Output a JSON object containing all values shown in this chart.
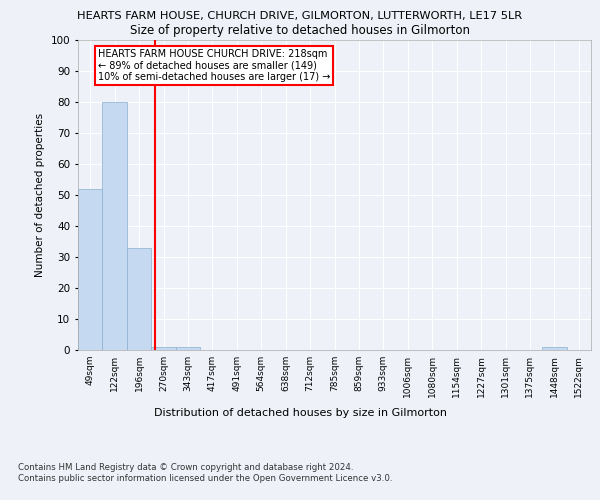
{
  "title1": "HEARTS FARM HOUSE, CHURCH DRIVE, GILMORTON, LUTTERWORTH, LE17 5LR",
  "title2": "Size of property relative to detached houses in Gilmorton",
  "xlabel": "Distribution of detached houses by size in Gilmorton",
  "ylabel": "Number of detached properties",
  "bar_labels": [
    "49sqm",
    "122sqm",
    "196sqm",
    "270sqm",
    "343sqm",
    "417sqm",
    "491sqm",
    "564sqm",
    "638sqm",
    "712sqm",
    "785sqm",
    "859sqm",
    "933sqm",
    "1006sqm",
    "1080sqm",
    "1154sqm",
    "1227sqm",
    "1301sqm",
    "1375sqm",
    "1448sqm",
    "1522sqm"
  ],
  "bar_values": [
    52,
    80,
    33,
    1,
    1,
    0,
    0,
    0,
    0,
    0,
    0,
    0,
    0,
    0,
    0,
    0,
    0,
    0,
    0,
    1,
    0
  ],
  "bar_color": "#c5d9f0",
  "bar_edge_color": "#8ab0d0",
  "red_line_x": 2.65,
  "annotation_text": "HEARTS FARM HOUSE CHURCH DRIVE: 218sqm\n← 89% of detached houses are smaller (149)\n10% of semi-detached houses are larger (17) →",
  "ylim": [
    0,
    100
  ],
  "yticks": [
    0,
    10,
    20,
    30,
    40,
    50,
    60,
    70,
    80,
    90,
    100
  ],
  "footnote1": "Contains HM Land Registry data © Crown copyright and database right 2024.",
  "footnote2": "Contains public sector information licensed under the Open Government Licence v3.0.",
  "bg_color": "#eef2f8",
  "plot_bg_color": "#eef2f8",
  "grid_color": "#ffffff"
}
